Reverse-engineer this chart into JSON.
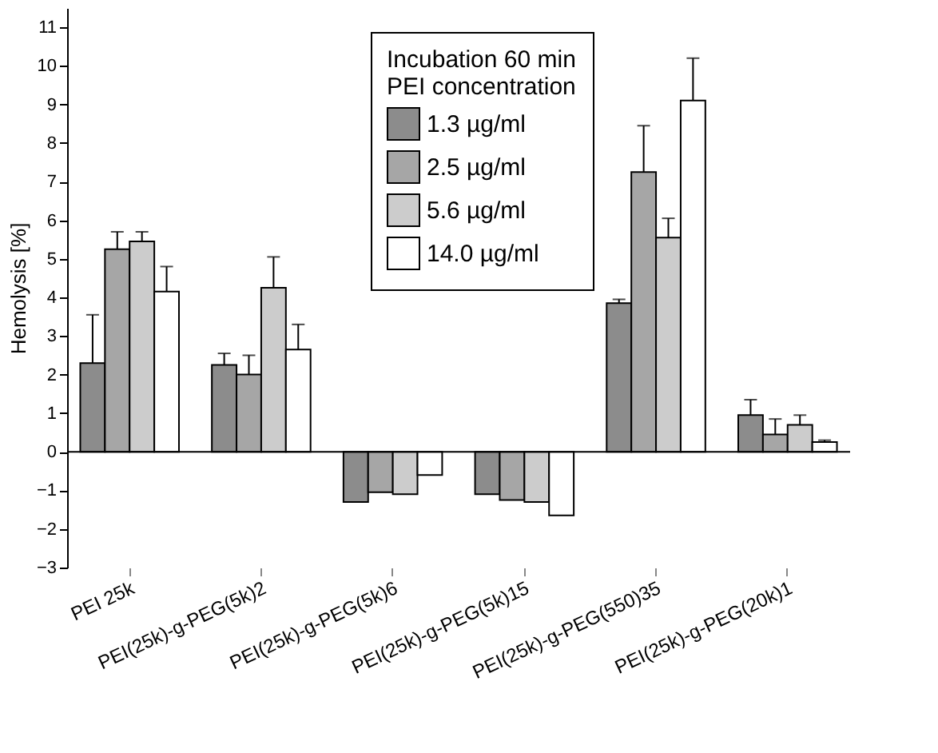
{
  "chart_data": {
    "type": "bar",
    "ylabel": "Hemolysis [%]",
    "legend_title": "Incubation 60 min\nPEI concentration",
    "categories": [
      "PEI 25k",
      "PEI(25k)-g-PEG(5k)2",
      "PEI(25k)-g-PEG(5k)6",
      "PEI(25k)-g-PEG(5k)15",
      "PEI(25k)-g-PEG(550)35",
      "PEI(25k)-g-PEG(20k)1"
    ],
    "series": [
      {
        "name": "1.3 µg/ml",
        "color": "#8c8c8c",
        "values": [
          2.3,
          2.25,
          -1.3,
          -1.1,
          3.85,
          0.95
        ],
        "errors": [
          [
            2.3,
            3.55
          ],
          [
            2.25,
            2.55
          ],
          null,
          null,
          [
            3.85,
            3.95
          ],
          [
            0.95,
            1.35
          ]
        ]
      },
      {
        "name": "2.5 µg/ml",
        "color": "#a6a6a6",
        "values": [
          5.25,
          2.0,
          -1.05,
          -1.25,
          7.25,
          0.45
        ],
        "errors": [
          [
            5.25,
            5.7
          ],
          [
            2.0,
            2.5
          ],
          null,
          null,
          [
            7.25,
            8.45
          ],
          [
            0.45,
            0.85
          ]
        ]
      },
      {
        "name": "5.6 µg/ml",
        "color": "#cccccc",
        "values": [
          5.45,
          4.25,
          -1.1,
          -1.3,
          5.55,
          0.7
        ],
        "errors": [
          [
            5.45,
            5.7
          ],
          [
            4.25,
            5.05
          ],
          null,
          null,
          [
            5.55,
            6.05
          ],
          [
            0.7,
            0.95
          ]
        ]
      },
      {
        "name": "14.0 µg/ml",
        "color": "#ffffff",
        "values": [
          4.15,
          2.65,
          -0.6,
          -1.65,
          9.1,
          0.25
        ],
        "errors": [
          [
            4.15,
            4.8
          ],
          [
            2.65,
            3.3
          ],
          null,
          null,
          [
            9.1,
            10.2
          ],
          [
            0.25,
            0.3
          ]
        ]
      }
    ],
    "ylim": [
      -3,
      11.5
    ],
    "yticks": [
      -3,
      -2,
      -1,
      0,
      1,
      2,
      3,
      4,
      5,
      6,
      7,
      8,
      9,
      10,
      11
    ],
    "grid": false,
    "legend": "top",
    "ref_lines": [
      {
        "axis": "y",
        "value": 0
      }
    ]
  }
}
